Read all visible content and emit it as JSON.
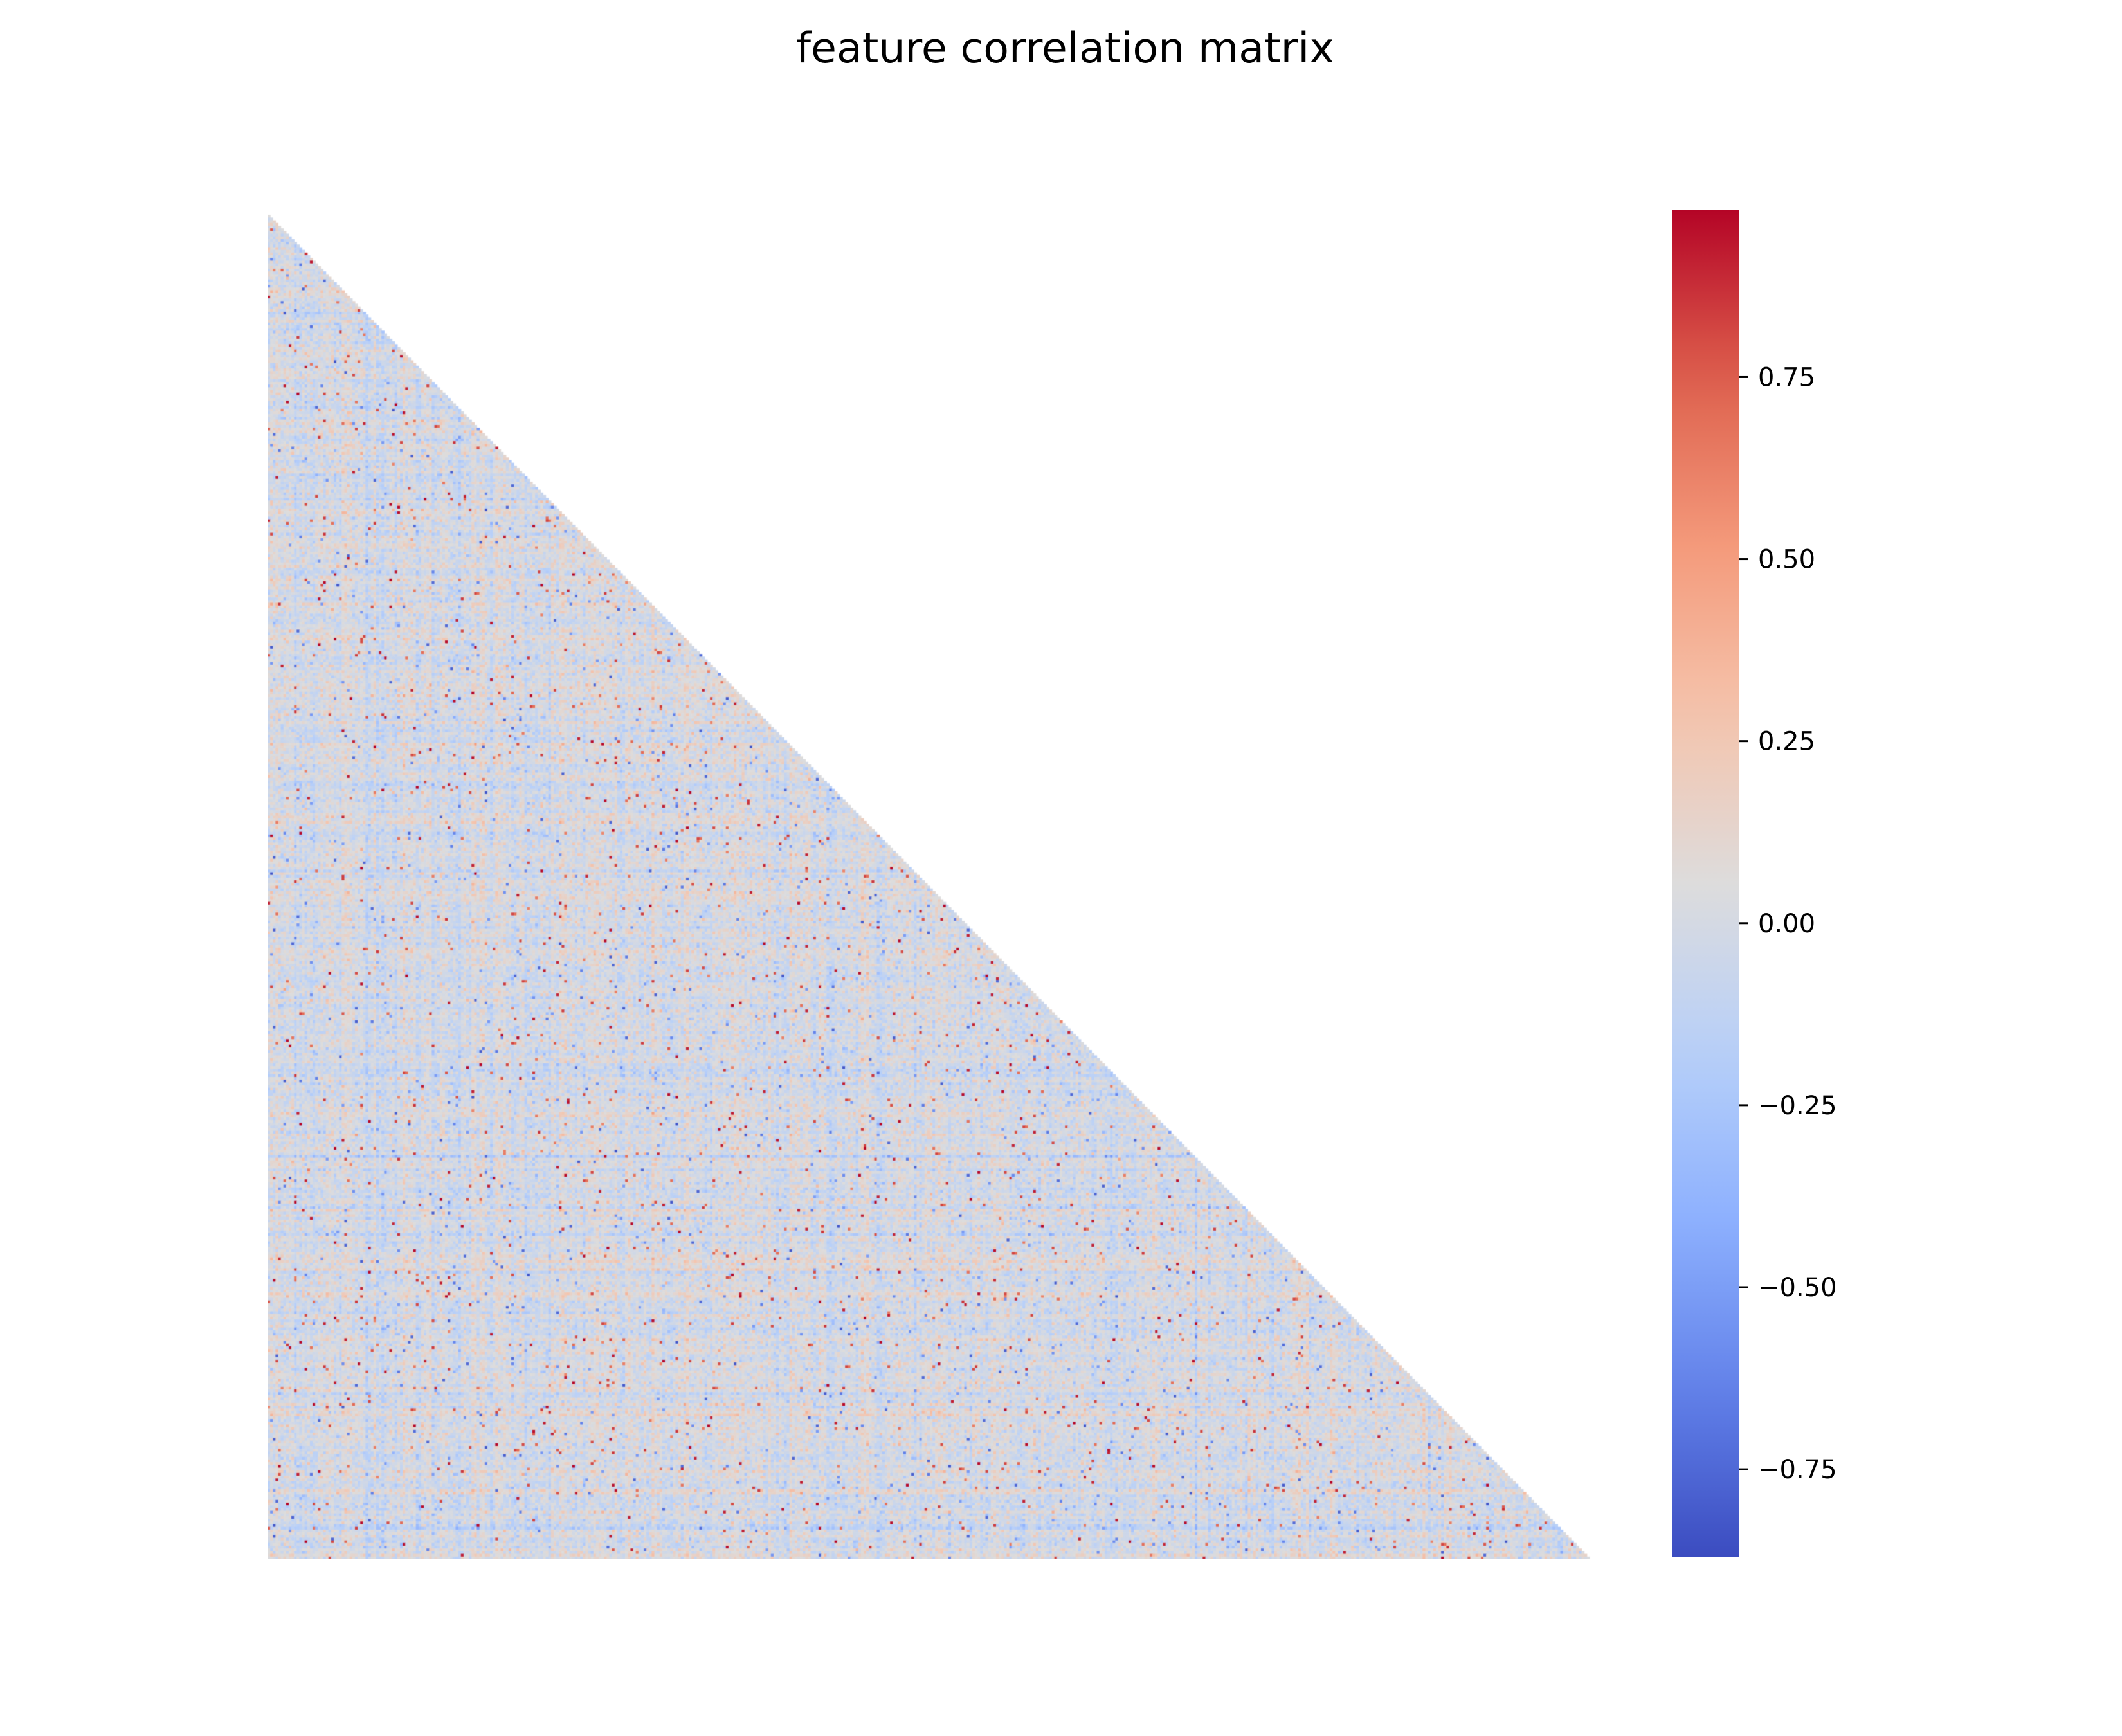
{
  "chart_data": {
    "type": "heatmap",
    "title": "feature correlation matrix",
    "xlabel": "",
    "ylabel": "",
    "mask": "upper-triangle",
    "matrix_size_approx": 500,
    "colormap": "coolwarm",
    "colors": {
      "min": "#3b4cc0",
      "mid": "#dddcdc",
      "max": "#b40426"
    },
    "value_summary": {
      "typical_range": [
        -0.25,
        0.25
      ],
      "observed_min": -0.87,
      "observed_max": 0.98
    },
    "colorbar": {
      "vmin": -0.87,
      "vmax": 0.98,
      "ticks": [
        0.75,
        0.5,
        0.25,
        0.0,
        -0.25,
        -0.5,
        -0.75
      ],
      "tick_labels": [
        "0.75",
        "0.50",
        "0.25",
        "0.00",
        "−0.25",
        "−0.50",
        "−0.75"
      ]
    },
    "grid": false,
    "legend": "colorbar-right"
  }
}
